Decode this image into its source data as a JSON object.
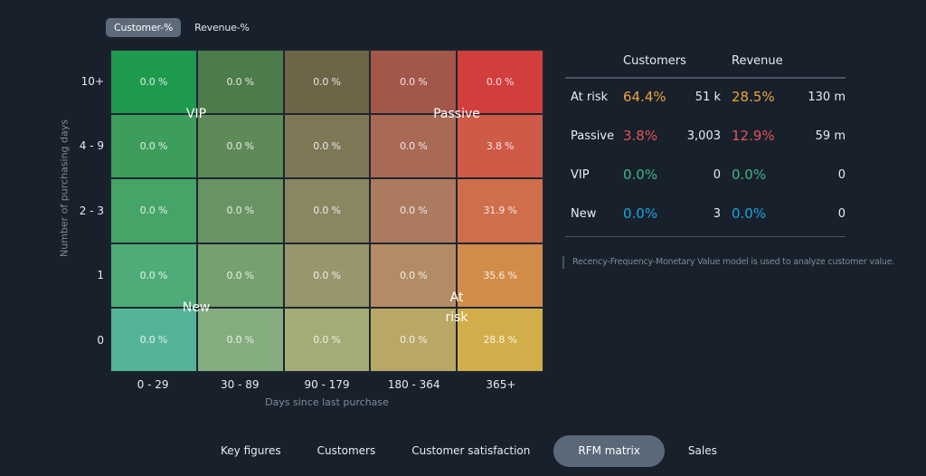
{
  "toggle": {
    "customer_label": "Customer-%",
    "revenue_label": "Revenue-%"
  },
  "matrix": {
    "row_labels": [
      "10+",
      "4 - 9",
      "2 - 3",
      "1",
      "0"
    ],
    "col_labels": [
      "0 - 29",
      "30 - 89",
      "90 - 179",
      "180 - 364",
      "365+"
    ],
    "y_axis_title": "Number of purchasing days",
    "x_axis_title": "Days since last purchase",
    "cells": [
      [
        "0.0 %",
        "0.0 %",
        "0.0 %",
        "0.0 %",
        "0.0 %"
      ],
      [
        "0.0 %",
        "0.0 %",
        "0.0 %",
        "0.0 %",
        "3.8 %"
      ],
      [
        "0.0 %",
        "0.0 %",
        "0.0 %",
        "0.0 %",
        "31.9 %"
      ],
      [
        "0.0 %",
        "0.0 %",
        "0.0 %",
        "0.0 %",
        "35.6 %"
      ],
      [
        "0.0 %",
        "0.0 %",
        "0.0 %",
        "0.0 %",
        "28.8 %"
      ]
    ],
    "colors": [
      [
        "#1e9a4f",
        "#4c7c4b",
        "#6e6548",
        "#a3564a",
        "#d23e3c"
      ],
      [
        "#3c9d5c",
        "#5e8a59",
        "#7f7857",
        "#a86a55",
        "#cf5a48"
      ],
      [
        "#45a468",
        "#699364",
        "#8a8662",
        "#ab7a5f",
        "#cf6e4a"
      ],
      [
        "#4fac78",
        "#76a06f",
        "#97966d",
        "#b38c66",
        "#d28c4a"
      ],
      [
        "#55b498",
        "#85ad7f",
        "#a4ab77",
        "#b9a765",
        "#d2ae4a"
      ]
    ],
    "segments": {
      "vip": "VIP",
      "passive": "Passive",
      "new": "New",
      "at_risk": "At risk"
    }
  },
  "summary": {
    "headers": {
      "customers": "Customers",
      "revenue": "Revenue"
    },
    "rows": [
      {
        "name": "At risk",
        "cust_pct": "64.4%",
        "cust_count": "51 k",
        "rev_pct": "28.5%",
        "rev_value": "130 m",
        "color": "#f0a23e"
      },
      {
        "name": "Passive",
        "cust_pct": "3.8%",
        "cust_count": "3,003",
        "rev_pct": "12.9%",
        "rev_value": "59 m",
        "color": "#e5535a"
      },
      {
        "name": "VIP",
        "cust_pct": "0.0%",
        "cust_count": "0",
        "rev_pct": "0.0%",
        "rev_value": "0",
        "color": "#3fb58b"
      },
      {
        "name": "New",
        "cust_pct": "0.0%",
        "cust_count": "3",
        "rev_pct": "0.0%",
        "rev_value": "0",
        "color": "#1aa7e0"
      }
    ],
    "note": "Recency-Frequency-Monetary Value model is used to analyze customer value."
  },
  "tabs": [
    {
      "label": "Key figures"
    },
    {
      "label": "Customers"
    },
    {
      "label": "Customer satisfaction"
    },
    {
      "label": "RFM matrix",
      "active": true
    },
    {
      "label": "Sales"
    }
  ]
}
